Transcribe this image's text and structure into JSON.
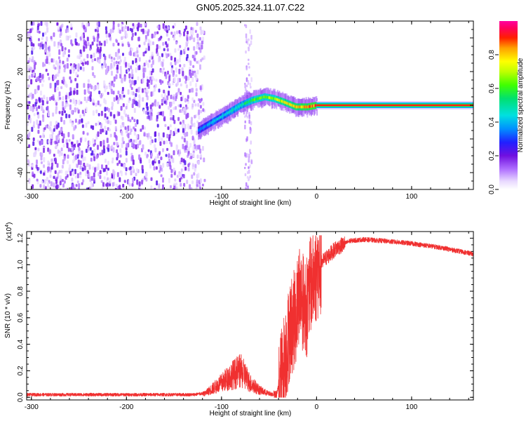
{
  "title": "GN05.2025.324.11.07.C22",
  "chart_data": [
    {
      "type": "heatmap",
      "name": "spectrogram",
      "xlabel": "Height of straight line (km)",
      "ylabel": "Frequency (Hz)",
      "xlim": [
        -305,
        165
      ],
      "ylim": [
        -50,
        50
      ],
      "xticks": [
        -300,
        -200,
        -100,
        0,
        100
      ],
      "yticks": [
        -40,
        -20,
        0,
        20,
        40
      ],
      "colorbar": {
        "label": "Normalized spectral amplitude",
        "range": [
          0,
          1
        ],
        "ticks": [
          0.0,
          0.2,
          0.4,
          0.6,
          0.8
        ],
        "colormap": "rainbow (white-violet-blue-cyan-green-yellow-red-magenta)"
      },
      "features": {
        "noise_region_x": [
          -305,
          -123
        ],
        "spike_x": -72,
        "ridge": [
          {
            "x": -125,
            "f": -15,
            "amp": 0.35
          },
          {
            "x": -110,
            "f": -10,
            "amp": 0.4
          },
          {
            "x": -95,
            "f": -5,
            "amp": 0.45
          },
          {
            "x": -80,
            "f": 0,
            "amp": 0.5
          },
          {
            "x": -68,
            "f": 3,
            "amp": 0.6
          },
          {
            "x": -55,
            "f": 5,
            "amp": 0.65
          },
          {
            "x": -45,
            "f": 4,
            "amp": 0.7
          },
          {
            "x": -35,
            "f": 2,
            "amp": 0.75
          },
          {
            "x": -22,
            "f": -1,
            "amp": 0.8
          },
          {
            "x": -10,
            "f": -1,
            "amp": 0.85
          },
          {
            "x": 0,
            "f": 0,
            "amp": 0.9
          }
        ],
        "steady_line": {
          "x_start": 0,
          "x_end": 165,
          "f": 0,
          "amp": 0.92
        }
      }
    },
    {
      "type": "line",
      "name": "snr",
      "xlabel": "Height of straight line (km)",
      "ylabel": "SNR (10 * v/v)",
      "scale_label_base": "(x10",
      "scale_label_exp": "4",
      "scale_label_end": ")",
      "xlim": [
        -305,
        165
      ],
      "ylim": [
        -0.02,
        1.25
      ],
      "xticks": [
        -300,
        -200,
        -100,
        0,
        100
      ],
      "yticks": [
        0.0,
        0.2,
        0.4,
        0.6,
        0.8,
        1.0,
        1.2
      ],
      "color": "#f03030",
      "series": [
        {
          "name": "SNR",
          "x": [
            -305,
            -200,
            -130,
            -118,
            -110,
            -100,
            -90,
            -80,
            -75,
            -70,
            -60,
            -50,
            -42,
            -38,
            -33,
            -28,
            -22,
            -18,
            -14,
            -10,
            -6,
            0,
            10,
            20,
            35,
            50,
            70,
            100,
            130,
            165
          ],
          "y": [
            0.02,
            0.02,
            0.02,
            0.03,
            0.07,
            0.12,
            0.18,
            0.22,
            0.18,
            0.12,
            0.06,
            0.03,
            0.02,
            0.15,
            0.35,
            0.55,
            0.65,
            0.85,
            0.75,
            0.72,
            0.9,
            0.98,
            1.05,
            1.12,
            1.18,
            1.19,
            1.18,
            1.16,
            1.13,
            1.08
          ]
        }
      ]
    }
  ]
}
